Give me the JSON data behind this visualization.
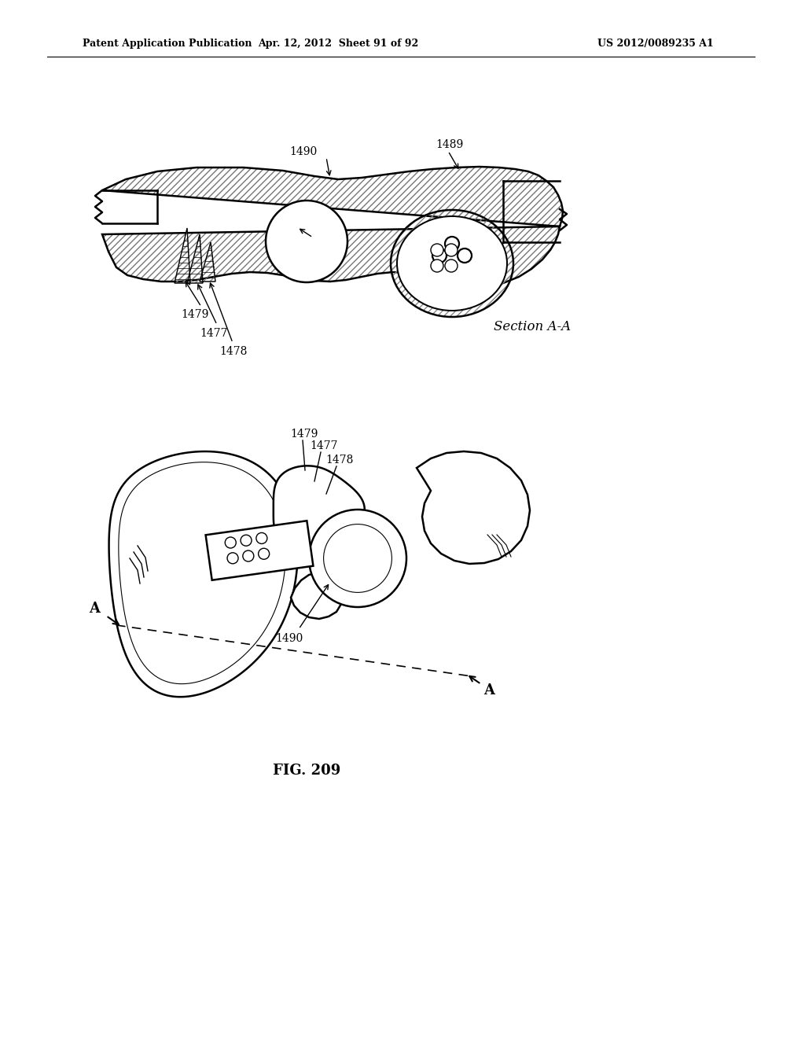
{
  "bg_color": "#ffffff",
  "header_left": "Patent Application Publication",
  "header_mid": "Apr. 12, 2012  Sheet 91 of 92",
  "header_right": "US 2012/0089235 A1",
  "fig_label": "FIG. 209",
  "section_label": "Section A-A",
  "line_color": "#000000",
  "line_width": 1.8
}
